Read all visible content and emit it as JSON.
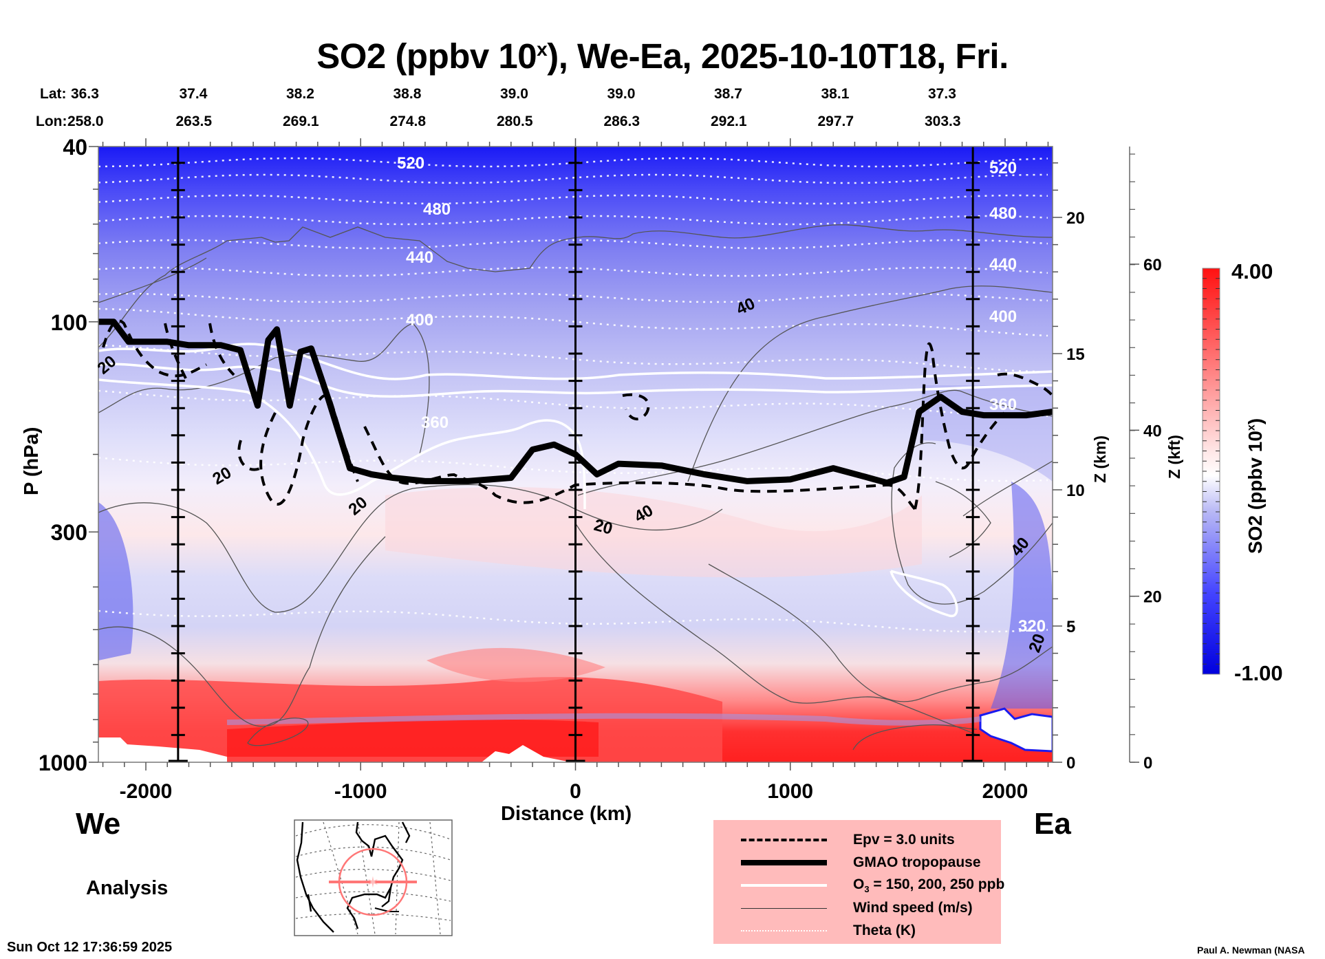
{
  "title": {
    "prefix": "SO2 (ppbv 10",
    "sup": "x",
    "suffix": "), We-Ea, 2025-10-10T18, Fri."
  },
  "header": {
    "lat_label": "Lat:",
    "lon_label": "Lon:",
    "lat": [
      "36.3",
      "37.4",
      "38.2",
      "38.8",
      "39.0",
      "39.0",
      "38.7",
      "38.1",
      "37.3"
    ],
    "lon": [
      "258.0",
      "263.5",
      "269.1",
      "274.8",
      "280.5",
      "286.3",
      "292.1",
      "297.7",
      "303.3"
    ]
  },
  "labels": {
    "west": "We",
    "east": "Ea",
    "analysis": "Analysis",
    "timestamp": "Sun Oct 12 17:36:59 2025",
    "credit": "Paul A. Newman (NASA"
  },
  "legend": {
    "items": [
      {
        "style": "dashed",
        "label": "Epv = 3.0 units"
      },
      {
        "style": "thick",
        "label": "GMAO tropopause"
      },
      {
        "style": "white",
        "label_pre": "O",
        "label_sub": "3",
        "label": " = 150, 200, 250 ppb"
      },
      {
        "style": "thin",
        "label": "Wind speed (m/s)"
      },
      {
        "style": "dotted",
        "label": "Theta (K)"
      }
    ]
  },
  "colors": {
    "high": "#ff0000",
    "mid": "#ffffff",
    "low": "#0000dd",
    "legend_bg": "#ffbbbb",
    "map_track": "#ff7777"
  },
  "chart_data": {
    "type": "heatmap",
    "title": "SO2 (ppbv 10^x), We-Ea, 2025-10-10T18, Fri.",
    "xlabel": "Distance (km)",
    "ylabel": "P (hPa)",
    "y2label": "Z (km)",
    "y3label": "Z (kft)",
    "colorbar_label": "SO2 (ppbv 10^x)",
    "xlim": [
      -2221,
      2221
    ],
    "ylim": [
      1000,
      40
    ],
    "yscale": "log",
    "x_ticks": [
      -2000,
      -1000,
      0,
      1000,
      2000
    ],
    "x_tick_labels": [
      "-2000",
      "-1000",
      "0",
      "1000",
      "2000"
    ],
    "y_ticks": [
      40,
      100,
      300,
      1000
    ],
    "y_tick_labels": [
      "40",
      "100",
      "300",
      "1000"
    ],
    "zkm_ticks": [
      0,
      5,
      10,
      15,
      20
    ],
    "zkm_tick_labels": [
      "0",
      "5",
      "10",
      "15",
      "20"
    ],
    "zkft_ticks": [
      0,
      20,
      40,
      60
    ],
    "zkft_tick_labels": [
      "0",
      "20",
      "40",
      "60"
    ],
    "colorbar": {
      "min": -1.0,
      "max": 4.0,
      "min_label": "-1.00",
      "max_label": "4.00",
      "levels": 40
    },
    "vertical_markers_km": [
      -1850,
      0,
      1850
    ],
    "theta_contours": [
      {
        "level": 520,
        "label": "520",
        "p": 46
      },
      {
        "level": 480,
        "label": "480",
        "p": 56
      },
      {
        "level": 440,
        "label": "440",
        "p": 72
      },
      {
        "level": 400,
        "label": "400",
        "p": 98
      },
      {
        "level": 360,
        "label": "360",
        "p": 155
      },
      {
        "level": 320,
        "label": "320",
        "p": 455
      }
    ],
    "wind_speed_labels": [
      "20",
      "20",
      "20",
      "20",
      "40",
      "40",
      "40",
      "20"
    ],
    "tropopause_hPa": [
      [
        -2221,
        100
      ],
      [
        -2150,
        100
      ],
      [
        -2080,
        111
      ],
      [
        -1900,
        111
      ],
      [
        -1800,
        113
      ],
      [
        -1650,
        113
      ],
      [
        -1560,
        116
      ],
      [
        -1480,
        155
      ],
      [
        -1430,
        110
      ],
      [
        -1390,
        104
      ],
      [
        -1330,
        155
      ],
      [
        -1280,
        117
      ],
      [
        -1230,
        115
      ],
      [
        -1150,
        150
      ],
      [
        -1050,
        215
      ],
      [
        -950,
        222
      ],
      [
        -850,
        226
      ],
      [
        -700,
        230
      ],
      [
        -500,
        230
      ],
      [
        -300,
        226
      ],
      [
        -200,
        195
      ],
      [
        -100,
        190
      ],
      [
        -50,
        195
      ],
      [
        0,
        200
      ],
      [
        100,
        222
      ],
      [
        200,
        210
      ],
      [
        400,
        212
      ],
      [
        600,
        222
      ],
      [
        800,
        230
      ],
      [
        1000,
        228
      ],
      [
        1200,
        215
      ],
      [
        1350,
        225
      ],
      [
        1450,
        232
      ],
      [
        1530,
        225
      ],
      [
        1600,
        160
      ],
      [
        1700,
        148
      ],
      [
        1800,
        160
      ],
      [
        1900,
        163
      ],
      [
        2100,
        163
      ],
      [
        2221,
        160
      ]
    ],
    "panel_sections_x": [
      "We",
      "Ea"
    ],
    "legend_placement": "bottom-center"
  }
}
